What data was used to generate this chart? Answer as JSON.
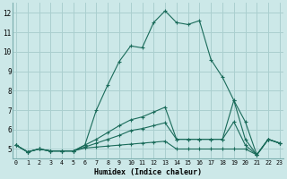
{
  "xlabel": "Humidex (Indice chaleur)",
  "bg_color": "#cce8e8",
  "grid_color": "#aacfcf",
  "line_color": "#1a6b5a",
  "x": [
    0,
    1,
    2,
    3,
    4,
    5,
    6,
    7,
    8,
    9,
    10,
    11,
    12,
    13,
    14,
    15,
    16,
    17,
    18,
    19,
    20,
    21,
    22,
    23
  ],
  "series": [
    [
      5.2,
      4.85,
      5.0,
      4.9,
      4.9,
      4.9,
      5.2,
      7.0,
      8.3,
      9.5,
      10.3,
      10.2,
      11.5,
      12.1,
      11.5,
      11.4,
      11.6,
      9.6,
      8.7,
      7.5,
      6.4,
      4.7,
      5.5,
      5.3
    ],
    [
      5.2,
      4.85,
      5.0,
      4.9,
      4.9,
      4.9,
      5.05,
      5.1,
      5.15,
      5.2,
      5.25,
      5.3,
      5.35,
      5.4,
      5.0,
      5.0,
      5.0,
      5.0,
      5.0,
      5.0,
      5.0,
      4.7,
      5.5,
      5.3
    ],
    [
      5.2,
      4.85,
      5.0,
      4.9,
      4.9,
      4.9,
      5.1,
      5.3,
      5.5,
      5.7,
      5.95,
      6.05,
      6.2,
      6.35,
      5.5,
      5.5,
      5.5,
      5.5,
      5.5,
      6.4,
      5.2,
      4.7,
      5.5,
      5.3
    ],
    [
      5.2,
      4.85,
      5.0,
      4.9,
      4.9,
      4.9,
      5.2,
      5.5,
      5.85,
      6.2,
      6.5,
      6.65,
      6.9,
      7.15,
      5.5,
      5.5,
      5.5,
      5.5,
      5.5,
      7.5,
      5.5,
      4.7,
      5.5,
      5.3
    ]
  ],
  "ylim": [
    4.5,
    12.5
  ],
  "yticks": [
    5,
    6,
    7,
    8,
    9,
    10,
    11,
    12
  ],
  "xticks": [
    0,
    1,
    2,
    3,
    4,
    5,
    6,
    7,
    8,
    9,
    10,
    11,
    12,
    13,
    14,
    15,
    16,
    17,
    18,
    19,
    20,
    21,
    22,
    23
  ],
  "xlim": [
    -0.3,
    23.3
  ]
}
